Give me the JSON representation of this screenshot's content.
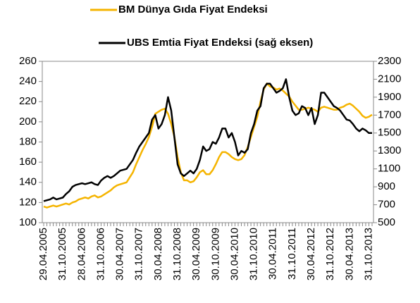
{
  "chart_data": {
    "type": "line",
    "categories": [
      "29.04.2005",
      null,
      null,
      null,
      null,
      null,
      "31.10.2005",
      null,
      null,
      null,
      null,
      null,
      "28.04.2006",
      null,
      null,
      null,
      null,
      null,
      "31.10.2006",
      null,
      null,
      null,
      null,
      null,
      "30.04.2007",
      null,
      null,
      null,
      null,
      null,
      "31.10.2007",
      null,
      null,
      null,
      null,
      null,
      "30.04.2008",
      null,
      null,
      null,
      null,
      null,
      "31.10.2008",
      null,
      null,
      null,
      null,
      null,
      "30.04.2009",
      null,
      null,
      null,
      null,
      null,
      "30.10.2009",
      null,
      null,
      null,
      null,
      null,
      "30.04.2010",
      null,
      null,
      null,
      null,
      null,
      "31.10.2010",
      null,
      null,
      null,
      null,
      null,
      "30.04.2011",
      null,
      null,
      null,
      null,
      null,
      "31.10.2011",
      null,
      null,
      null,
      null,
      null,
      "30.04.2012",
      null,
      null,
      null,
      null,
      null,
      "31.10.2012",
      null,
      null,
      null,
      null,
      null,
      "30.04.2013",
      null,
      null,
      null,
      null,
      null,
      "31.10.2013",
      null
    ],
    "series": [
      {
        "name": "BM Dünya Gıda Fiyat Endeksi",
        "color": "#f5b400",
        "values": [
          116,
          115,
          116,
          117,
          116,
          117,
          118,
          119,
          118,
          120,
          121,
          123,
          124,
          125,
          124,
          126,
          127,
          125,
          126,
          128,
          130,
          132,
          135,
          137,
          138,
          139,
          140,
          145,
          150,
          158,
          165,
          172,
          178,
          185,
          195,
          208,
          210,
          212,
          213,
          208,
          198,
          185,
          165,
          150,
          142,
          142,
          140,
          141,
          145,
          150,
          152,
          148,
          148,
          152,
          158,
          165,
          170,
          170,
          168,
          165,
          163,
          162,
          163,
          167,
          175,
          185,
          195,
          205,
          220,
          232,
          238,
          235,
          234,
          232,
          233,
          231,
          228,
          225,
          220,
          216,
          212,
          212,
          213,
          214,
          213,
          212,
          210,
          214,
          215,
          214,
          213,
          212,
          212,
          214,
          215,
          217,
          218,
          216,
          213,
          210,
          206,
          204,
          205,
          207
        ]
      },
      {
        "name": "UBS Emtia Fiyat Endeksi (sağ eksen)",
        "color": "#000000",
        "axis": "y2",
        "values": [
          740,
          750,
          760,
          780,
          760,
          770,
          780,
          820,
          850,
          900,
          920,
          930,
          940,
          930,
          940,
          950,
          930,
          920,
          970,
          1000,
          1020,
          1000,
          1020,
          1050,
          1080,
          1090,
          1100,
          1150,
          1200,
          1280,
          1350,
          1400,
          1450,
          1500,
          1650,
          1700,
          1550,
          1600,
          1700,
          1900,
          1750,
          1450,
          1150,
          1050,
          1020,
          1050,
          1080,
          1050,
          1100,
          1200,
          1350,
          1300,
          1320,
          1400,
          1380,
          1450,
          1550,
          1550,
          1450,
          1500,
          1400,
          1250,
          1300,
          1280,
          1320,
          1500,
          1600,
          1750,
          1800,
          2000,
          2050,
          2050,
          2000,
          1950,
          1970,
          2000,
          2100,
          1900,
          1750,
          1700,
          1720,
          1800,
          1780,
          1700,
          1780,
          1600,
          1700,
          1950,
          1950,
          1900,
          1850,
          1800,
          1780,
          1750,
          1700,
          1650,
          1640,
          1600,
          1550,
          1520,
          1550,
          1530,
          1500,
          1500
        ]
      }
    ],
    "ylim": [
      100,
      260
    ],
    "yticks": [
      100,
      120,
      140,
      160,
      180,
      200,
      220,
      240,
      260
    ],
    "y2lim": [
      500,
      2300
    ],
    "y2ticks": [
      500,
      700,
      900,
      1100,
      1300,
      1500,
      1700,
      1900,
      2100,
      2300
    ]
  }
}
